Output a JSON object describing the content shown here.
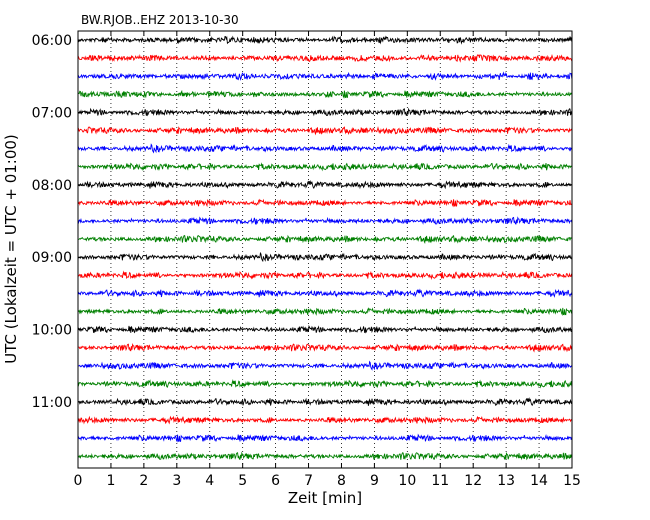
{
  "chart_data": {
    "type": "line",
    "subtype": "dayplot",
    "title": "BW.RJOB..EHZ 2013-10-30",
    "xlabel": "Zeit  [min]",
    "ylabel": "UTC (Lokalzeit = UTC + 01:00)",
    "xlim": [
      0,
      15
    ],
    "x_ticks": [
      0,
      1,
      2,
      3,
      4,
      5,
      6,
      7,
      8,
      9,
      10,
      11,
      12,
      13,
      14,
      15
    ],
    "y_tick_labels": [
      "06:00",
      "07:00",
      "08:00",
      "09:00",
      "10:00",
      "11:00"
    ],
    "y_tick_row_indices": [
      0,
      4,
      8,
      12,
      16,
      20
    ],
    "minutes_per_row": 15,
    "row_count": 24,
    "row_colors": [
      "#000000",
      "#ff0000",
      "#0000ff",
      "#008000"
    ],
    "grid": "vertical dotted",
    "legend": "none"
  }
}
